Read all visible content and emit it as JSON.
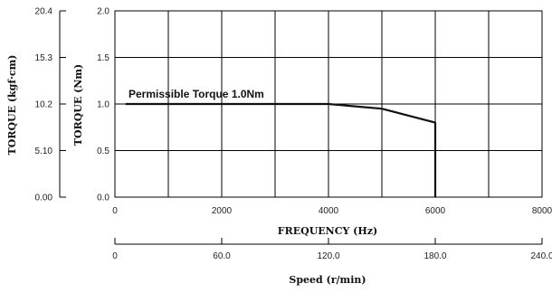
{
  "chart_data": {
    "type": "line",
    "grid": true,
    "x_primary": {
      "label": "FREQUENCY (Hz)",
      "range": [
        0,
        8000
      ],
      "ticks": [
        "0",
        "2000",
        "4000",
        "6000",
        "8000"
      ]
    },
    "x_secondary": {
      "label": "Speed (r/min)",
      "range": [
        0,
        240
      ],
      "ticks": [
        "0",
        "60.0",
        "120.0",
        "180.0",
        "240.0"
      ]
    },
    "y_primary": {
      "label": "TORQUE (Nm)",
      "range": [
        0,
        2.0
      ],
      "ticks": [
        "0.0",
        "0.5",
        "1.0",
        "1.5",
        "2.0"
      ]
    },
    "y_secondary": {
      "label": "TORQUE (kgf·cm)",
      "range": [
        0,
        20.4
      ],
      "ticks": [
        "0.00",
        "5.10",
        "10.2",
        "15.3",
        "20.4"
      ]
    },
    "annotation": "Permissible Torque 1.0Nm",
    "series": [
      {
        "x": [
          200,
          4000,
          5000,
          6000,
          6000
        ],
        "y": [
          1.0,
          1.0,
          0.95,
          0.8,
          0.0
        ]
      }
    ]
  }
}
